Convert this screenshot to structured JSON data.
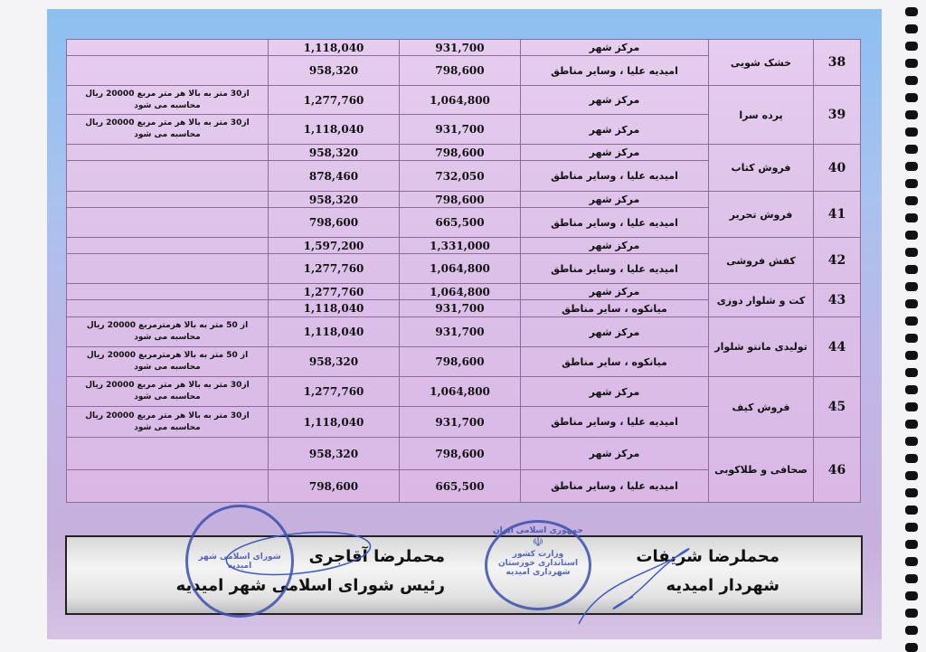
{
  "table": {
    "items": [
      {
        "no": "38",
        "activity": "خشک شویی",
        "rows": [
          {
            "region": "مرکز شهر",
            "price_base": "931,700",
            "price_total": "1,118,040",
            "note": ""
          },
          {
            "region": "امیدیه علیا ، وسایر مناطق",
            "price_base": "798,600",
            "price_total": "958,320",
            "note": ""
          }
        ]
      },
      {
        "no": "39",
        "activity": "پرده سرا",
        "rows": [
          {
            "region": "مرکز شهر",
            "price_base": "1,064,800",
            "price_total": "1,277,760",
            "note": "از30 متر به بالا هر متر مربع 20000 ریال محاسبه می شود"
          },
          {
            "region": "مرکز شهر",
            "price_base": "931,700",
            "price_total": "1,118,040",
            "note": "از30 متر به بالا هر متر مربع 20000 ریال محاسبه می شود"
          }
        ]
      },
      {
        "no": "40",
        "activity": "فروش کتاب",
        "rows": [
          {
            "region": "مرکز شهر",
            "price_base": "798,600",
            "price_total": "958,320",
            "note": ""
          },
          {
            "region": "امیدیه علیا ، وسایر مناطق",
            "price_base": "732,050",
            "price_total": "878,460",
            "note": ""
          }
        ]
      },
      {
        "no": "41",
        "activity": "فروش تحریر",
        "rows": [
          {
            "region": "مرکز شهر",
            "price_base": "798,600",
            "price_total": "958,320",
            "note": ""
          },
          {
            "region": "امیدیه علیا ، وسایر مناطق",
            "price_base": "665,500",
            "price_total": "798,600",
            "note": ""
          }
        ]
      },
      {
        "no": "42",
        "activity": "کفش فروشی",
        "rows": [
          {
            "region": "مرکز شهر",
            "price_base": "1,331,000",
            "price_total": "1,597,200",
            "note": ""
          },
          {
            "region": "امیدیه علیا ، وسایر مناطق",
            "price_base": "1,064,800",
            "price_total": "1,277,760",
            "note": ""
          }
        ]
      },
      {
        "no": "43",
        "activity": "کت و شلوار دوزی",
        "rows": [
          {
            "region": "مرکز شهر",
            "price_base": "1,064,800",
            "price_total": "1,277,760",
            "note": ""
          },
          {
            "region": "میانکوه ، سایر مناطق",
            "price_base": "931,700",
            "price_total": "1,118,040",
            "note": ""
          }
        ]
      },
      {
        "no": "44",
        "activity": "تولیدی مانتو شلوار",
        "rows": [
          {
            "region": "مرکز شهر",
            "price_base": "931,700",
            "price_total": "1,118,040",
            "note": "از 50 متر به بالا هرمترمربع 20000 ریال محاسبه می شود"
          },
          {
            "region": "میانکوه ، سایر مناطق",
            "price_base": "798,600",
            "price_total": "958,320",
            "note": "از 50 متر به بالا هرمترمربع 20000 ریال محاسبه می شود"
          }
        ]
      },
      {
        "no": "45",
        "activity": "فروش کیف",
        "rows": [
          {
            "region": "مرکز شهر",
            "price_base": "1,064,800",
            "price_total": "1,277,760",
            "note": "از30 متر به بالا هر متر مربع 20000 ریال محاسبه می شود"
          },
          {
            "region": "امیدیه علیا ، وسایر مناطق",
            "price_base": "931,700",
            "price_total": "1,118,040",
            "note": "از30 متر به بالا هر متر مربع 20000 ریال محاسبه می شود"
          }
        ]
      },
      {
        "no": "46",
        "activity": "صحافی و طلاکوبی",
        "rows": [
          {
            "region": "مرکز شهر",
            "price_base": "798,600",
            "price_total": "958,320",
            "note": ""
          },
          {
            "region": "امیدیه علیا ، وسایر مناطق",
            "price_base": "665,500",
            "price_total": "798,600",
            "note": ""
          }
        ]
      }
    ]
  },
  "signatures": {
    "right": {
      "name": "محملرضا شریفات",
      "title": "شهردار امیدیه"
    },
    "left": {
      "name": "محملرضا آقاجری",
      "title": "رئیس شورای اسلامی شهر امیدیه"
    }
  },
  "stamps": {
    "council": "شورای اسلامی شهر امیدیه",
    "governor": {
      "top": "جمهوری اسلامی ایران",
      "line1": "وزارت کشور",
      "line2": "استانداری خوزستان",
      "line3": "شهرداری امیدیه"
    }
  },
  "colors": {
    "table_bg": "#dcc0e8",
    "border": "#8d6c9a",
    "stamp": "#3c4fb0",
    "sheet_top": "#8cc0f0"
  }
}
